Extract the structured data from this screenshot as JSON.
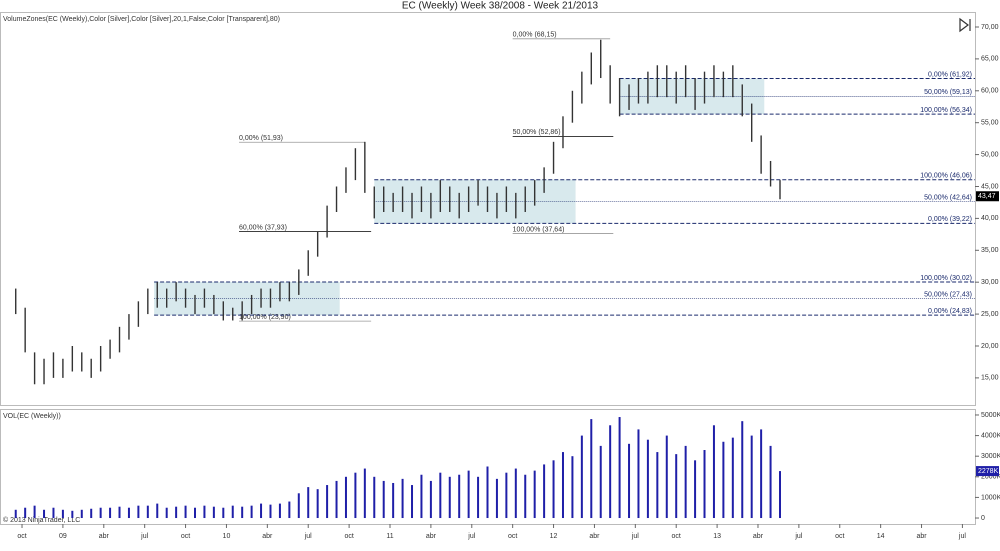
{
  "chart_data": [
    {
      "type": "range_bar",
      "title": "EC (Weekly)  Week 38/2008 - Week 21/2013",
      "indicator_label": "VolumeZones(EC (Weekly),Color [Silver],Color [Silver],20,1,False,Color [Transparent],80)",
      "color": "#333333",
      "x": [
        0,
        3,
        6,
        9,
        12,
        15,
        18,
        21,
        24,
        27,
        30,
        33,
        36,
        39,
        42,
        45,
        48,
        51,
        54,
        57,
        60,
        63,
        66,
        69,
        72,
        75,
        78,
        81,
        84,
        87,
        90,
        93,
        96,
        99,
        102,
        105,
        108,
        111,
        114,
        117,
        120,
        123,
        126,
        129,
        132,
        135,
        138,
        141,
        144,
        147,
        150,
        153,
        156,
        159,
        162,
        165,
        168,
        171,
        174,
        177,
        180,
        183,
        186,
        189,
        192,
        195,
        198,
        201,
        204,
        207,
        210,
        213,
        216,
        219,
        222,
        225,
        228,
        231,
        234,
        237,
        240,
        243
      ],
      "high": [
        29,
        26,
        19,
        18,
        19,
        18,
        20,
        19,
        18,
        20,
        21,
        23,
        25,
        27,
        29,
        30,
        29,
        30,
        29,
        28,
        29,
        28,
        27,
        26,
        27,
        28,
        29,
        29,
        30,
        30,
        32,
        35,
        38,
        42,
        45,
        48,
        51,
        52,
        45,
        45,
        44,
        45,
        44,
        45,
        44,
        46,
        45,
        44,
        45,
        46,
        45,
        44,
        45,
        44,
        45,
        46,
        48,
        52,
        56,
        60,
        63,
        66,
        68,
        64,
        62,
        61,
        62,
        63,
        64,
        64,
        63,
        64,
        62,
        63,
        64,
        63,
        64,
        61,
        58,
        53,
        49,
        46
      ],
      "low": [
        25,
        19,
        14,
        14,
        15,
        15,
        16,
        16,
        15,
        16,
        18,
        19,
        21,
        23,
        25,
        26,
        26,
        27,
        26,
        25,
        26,
        25,
        24,
        24,
        24,
        25,
        26,
        26,
        27,
        27,
        28,
        31,
        34,
        37,
        41,
        44,
        46,
        44,
        40,
        41,
        41,
        41,
        40,
        41,
        40,
        41,
        41,
        40,
        41,
        42,
        41,
        40,
        41,
        40,
        41,
        42,
        44,
        47,
        51,
        55,
        58,
        61,
        62,
        58,
        56,
        57,
        58,
        58,
        59,
        59,
        58,
        59,
        57,
        58,
        59,
        59,
        59,
        56,
        52,
        47,
        45,
        43
      ],
      "xlim": [
        -5,
        305
      ],
      "ylim": [
        10.75,
        72.35
      ],
      "yticks": [
        {
          "value": 15,
          "label": "15,00"
        },
        {
          "value": 20,
          "label": "20,00"
        },
        {
          "value": 25,
          "label": "25,00"
        },
        {
          "value": 30,
          "label": "30,00"
        },
        {
          "value": 35,
          "label": "35,00"
        },
        {
          "value": 40,
          "label": "40,00"
        },
        {
          "value": 45,
          "label": "45,00"
        },
        {
          "value": 50,
          "label": "50,00"
        },
        {
          "value": 55,
          "label": "55,00"
        },
        {
          "value": 60,
          "label": "60,00"
        },
        {
          "value": 65,
          "label": "65,00"
        },
        {
          "value": 70,
          "label": "70,00"
        }
      ],
      "last_price": {
        "value": 43.47,
        "label": "43,47"
      },
      "zones": [
        {
          "low": 24.83,
          "high": 30.02,
          "from": 44,
          "to": 103
        },
        {
          "low": 39.22,
          "high": 46.06,
          "from": 114,
          "to": 178
        },
        {
          "low": 56.34,
          "high": 61.92,
          "from": 192,
          "to": 238
        }
      ],
      "fib_levels": [
        {
          "label": "0,00% (61,92)",
          "value": 61.92,
          "from": 192,
          "style": "dashed"
        },
        {
          "label": "50,00% (59,13)",
          "value": 59.13,
          "from": 192,
          "style": "dotted"
        },
        {
          "label": "100,00% (56,34)",
          "value": 56.34,
          "from": 192,
          "style": "dashed"
        },
        {
          "label": "100,00% (46,06)",
          "value": 46.06,
          "from": 114,
          "style": "dashed"
        },
        {
          "label": "50,00% (42,64)",
          "value": 42.64,
          "from": 114,
          "style": "dotted"
        },
        {
          "label": "0,00% (39,22)",
          "value": 39.22,
          "from": 114,
          "style": "dashed"
        },
        {
          "label": "100,00% (30,02)",
          "value": 30.02,
          "from": 44,
          "style": "dashed"
        },
        {
          "label": "50,00% (27,43)",
          "value": 27.43,
          "from": 44,
          "style": "dotted"
        },
        {
          "label": "0,00% (24,83)",
          "value": 24.83,
          "from": 44,
          "style": "dashed"
        }
      ],
      "retracements": [
        {
          "label": "0,00% (68,15)",
          "value": 68.15,
          "from": 158,
          "to": 189,
          "color": "#999999"
        },
        {
          "label": "50,00% (52,86)",
          "value": 52.86,
          "from": 158,
          "to": 190,
          "color": "#000000"
        },
        {
          "label": "100,00% (37,64)",
          "value": 37.64,
          "from": 158,
          "to": 190,
          "color": "#999999"
        },
        {
          "label": "0,00% (51,93)",
          "value": 51.93,
          "from": 71,
          "to": 111,
          "color": "#999999"
        },
        {
          "label": "60,00% (37,93)",
          "value": 37.93,
          "from": 71,
          "to": 113,
          "color": "#000000"
        },
        {
          "label": "100,00% (23,90)",
          "value": 23.9,
          "from": 71,
          "to": 113,
          "color": "#999999"
        }
      ]
    },
    {
      "type": "bar",
      "title": "VOL(EC (Weekly))",
      "copyright": "© 2013 NinjaTrader, LLC",
      "color": "#1f1fa8",
      "x": [
        0,
        3,
        6,
        9,
        12,
        15,
        18,
        21,
        24,
        27,
        30,
        33,
        36,
        39,
        42,
        45,
        48,
        51,
        54,
        57,
        60,
        63,
        66,
        69,
        72,
        75,
        78,
        81,
        84,
        87,
        90,
        93,
        96,
        99,
        102,
        105,
        108,
        111,
        114,
        117,
        120,
        123,
        126,
        129,
        132,
        135,
        138,
        141,
        144,
        147,
        150,
        153,
        156,
        159,
        162,
        165,
        168,
        171,
        174,
        177,
        180,
        183,
        186,
        189,
        192,
        195,
        198,
        201,
        204,
        207,
        210,
        213,
        216,
        219,
        222,
        225,
        228,
        231,
        234,
        237,
        240,
        243
      ],
      "values": [
        400000,
        500000,
        600000,
        400000,
        500000,
        400000,
        350000,
        400000,
        450000,
        500000,
        500000,
        550000,
        500000,
        600000,
        600000,
        700000,
        500000,
        550000,
        600000,
        500000,
        600000,
        550000,
        500000,
        600000,
        550000,
        600000,
        700000,
        650000,
        700000,
        800000,
        1200000,
        1500000,
        1400000,
        1600000,
        1800000,
        2000000,
        2200000,
        2400000,
        2000000,
        1800000,
        1700000,
        1900000,
        1600000,
        2100000,
        1800000,
        2200000,
        2000000,
        2100000,
        2300000,
        2000000,
        2500000,
        1900000,
        2200000,
        2400000,
        2100000,
        2300000,
        2600000,
        2800000,
        3200000,
        3000000,
        4000000,
        4800000,
        3500000,
        4500000,
        4900000,
        3600000,
        4300000,
        3800000,
        3200000,
        4000000,
        3100000,
        3500000,
        2800000,
        3300000,
        4500000,
        3700000,
        3900000,
        4700000,
        4000000,
        4300000,
        3500000,
        2278000
      ],
      "xlim": [
        -5,
        305
      ],
      "ylim": [
        -290000,
        5290000
      ],
      "yticks": [
        0,
        {
          "value": 1000000,
          "label": "1000K"
        },
        {
          "value": 2000000,
          "label": "2000K"
        },
        {
          "value": 3000000,
          "label": "3000K"
        },
        {
          "value": 4000000,
          "label": "4000K"
        },
        {
          "value": 5000000,
          "label": "5000K"
        }
      ],
      "last_value": {
        "value": 2278000,
        "label": "2278K"
      },
      "xticks": [
        {
          "value": 2,
          "label": "oct"
        },
        {
          "value": 15,
          "label": "09"
        },
        {
          "value": 28,
          "label": "abr"
        },
        {
          "value": 41,
          "label": "jul"
        },
        {
          "value": 54,
          "label": "oct"
        },
        {
          "value": 67,
          "label": "10"
        },
        {
          "value": 80,
          "label": "abr"
        },
        {
          "value": 93,
          "label": "jul"
        },
        {
          "value": 106,
          "label": "oct"
        },
        {
          "value": 119,
          "label": "11"
        },
        {
          "value": 132,
          "label": "abr"
        },
        {
          "value": 145,
          "label": "jul"
        },
        {
          "value": 158,
          "label": "oct"
        },
        {
          "value": 171,
          "label": "12"
        },
        {
          "value": 184,
          "label": "abr"
        },
        {
          "value": 197,
          "label": "jul"
        },
        {
          "value": 210,
          "label": "oct"
        },
        {
          "value": 223,
          "label": "13"
        },
        {
          "value": 236,
          "label": "abr"
        },
        {
          "value": 249,
          "label": "jul"
        },
        {
          "value": 262,
          "label": "oct"
        },
        {
          "value": 275,
          "label": "14"
        },
        {
          "value": 288,
          "label": "abr"
        },
        {
          "value": 301,
          "label": "jul"
        }
      ]
    }
  ]
}
